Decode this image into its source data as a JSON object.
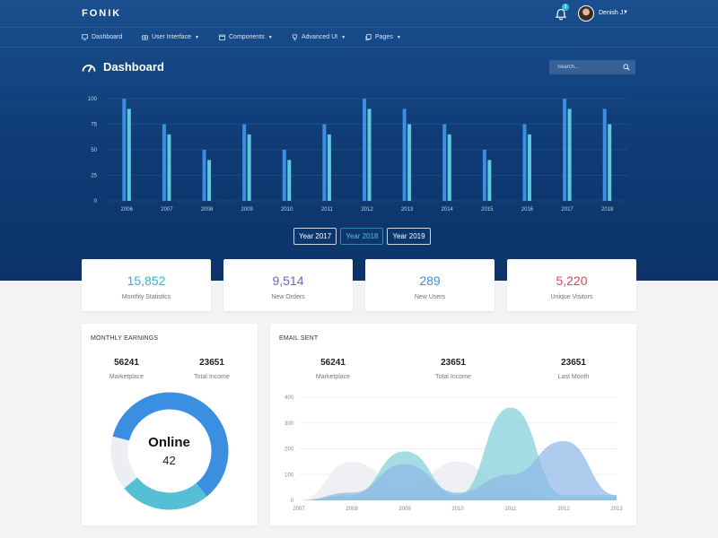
{
  "brand": "FONIK",
  "header": {
    "notification_count": "3",
    "user_name": "Denish J."
  },
  "nav": [
    {
      "label": "Dashboard",
      "icon": "monitor-icon",
      "dropdown": false
    },
    {
      "label": "User Interface",
      "icon": "camera-icon",
      "dropdown": true
    },
    {
      "label": "Components",
      "icon": "calendar-icon",
      "dropdown": true
    },
    {
      "label": "Advanced UI",
      "icon": "trophy-icon",
      "dropdown": true
    },
    {
      "label": "Pages",
      "icon": "pages-icon",
      "dropdown": true
    }
  ],
  "page_title": "Dashboard",
  "search": {
    "placeholder": "Search..."
  },
  "chart_data": [
    {
      "type": "bar",
      "categories": [
        "2006",
        "2007",
        "2008",
        "2009",
        "2010",
        "2011",
        "2012",
        "2013",
        "2014",
        "2015",
        "2016",
        "2017",
        "2018"
      ],
      "series": [
        {
          "values": [
            100,
            75,
            50,
            75,
            50,
            75,
            100,
            90,
            75,
            50,
            75,
            100,
            90
          ],
          "color": "#3a8fe0"
        },
        {
          "values": [
            90,
            65,
            40,
            65,
            40,
            65,
            90,
            75,
            65,
            40,
            65,
            90,
            75
          ],
          "color": "#5cc8dc"
        }
      ],
      "ylim": [
        0,
        100
      ],
      "yticks": [
        0,
        25,
        50,
        75,
        100
      ],
      "grid": true
    },
    {
      "type": "area",
      "x": [
        "2007",
        "2008",
        "2009",
        "2010",
        "2011",
        "2012",
        "2013"
      ],
      "series": [
        {
          "values": [
            0,
            150,
            50,
            150,
            50,
            0,
            0
          ],
          "color": "#e8e9ee"
        },
        {
          "values": [
            0,
            20,
            190,
            20,
            360,
            20,
            20
          ],
          "color": "#86d1db"
        },
        {
          "values": [
            0,
            30,
            140,
            30,
            100,
            230,
            20
          ],
          "color": "#8cb6e6"
        }
      ],
      "ylim": [
        0,
        400
      ],
      "yticks": [
        0,
        100,
        200,
        300,
        400
      ],
      "grid": true
    }
  ],
  "year_buttons": [
    {
      "label": "Year 2017",
      "active": false
    },
    {
      "label": "Year 2018",
      "active": true
    },
    {
      "label": "Year 2019",
      "active": false
    }
  ],
  "stats": [
    {
      "value": "15,852",
      "label": "Monthly Statistics",
      "color": "#3ab0c8"
    },
    {
      "value": "9,514",
      "label": "New Orders",
      "color": "#7a5cd6"
    },
    {
      "value": "289",
      "label": "New Users",
      "color": "#3a8fe0"
    },
    {
      "value": "5,220",
      "label": "Unique Visitors",
      "color": "#e0455a"
    }
  ],
  "earnings": {
    "title": "MONTHLY EARNINGS",
    "metrics": [
      {
        "value": "56241",
        "label": "Marketplace"
      },
      {
        "value": "23651",
        "label": "Total Income"
      }
    ],
    "donut": {
      "title": "Online",
      "count": "42",
      "segments": [
        {
          "fraction": 0.6,
          "color": "#3a8fe0"
        },
        {
          "fraction": 0.25,
          "color": "#55bfd6"
        },
        {
          "fraction": 0.15,
          "color": "#eceef3"
        }
      ]
    }
  },
  "email": {
    "title": "EMAIL SENT",
    "metrics": [
      {
        "value": "56241",
        "label": "Marketplace"
      },
      {
        "value": "23651",
        "label": "Total Income"
      },
      {
        "value": "23651",
        "label": "Last Month"
      }
    ]
  }
}
